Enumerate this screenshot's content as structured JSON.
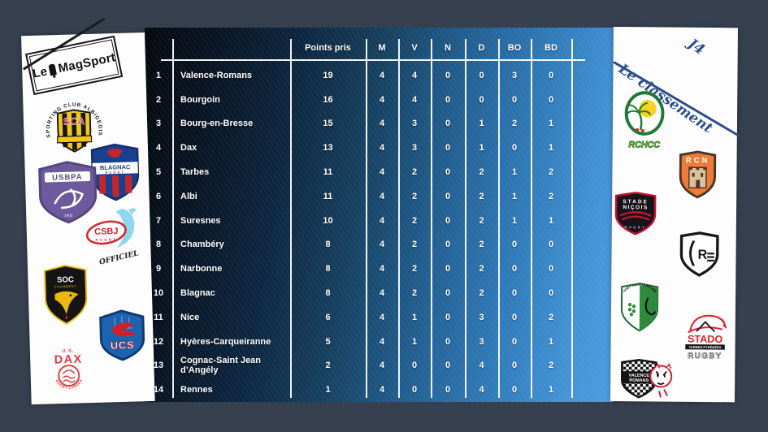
{
  "chart_data": {
    "type": "table",
    "journee": "J4",
    "title": "Le classement",
    "columns": [
      "Points pris",
      "M",
      "V",
      "N",
      "D",
      "BO",
      "BD"
    ],
    "rows": [
      {
        "rank": 1,
        "team": "Valence-Romans",
        "points_pris": 19,
        "m": 4,
        "v": 4,
        "n": 0,
        "d": 0,
        "bo": 3,
        "bd": 0
      },
      {
        "rank": 2,
        "team": "Bourgoin",
        "points_pris": 16,
        "m": 4,
        "v": 4,
        "n": 0,
        "d": 0,
        "bo": 0,
        "bd": 0
      },
      {
        "rank": 3,
        "team": "Bourg-en-Bresse",
        "points_pris": 15,
        "m": 4,
        "v": 3,
        "n": 0,
        "d": 1,
        "bo": 2,
        "bd": 1
      },
      {
        "rank": 4,
        "team": "Dax",
        "points_pris": 13,
        "m": 4,
        "v": 3,
        "n": 0,
        "d": 1,
        "bo": 0,
        "bd": 1
      },
      {
        "rank": 5,
        "team": "Tarbes",
        "points_pris": 11,
        "m": 4,
        "v": 2,
        "n": 0,
        "d": 2,
        "bo": 1,
        "bd": 2
      },
      {
        "rank": 6,
        "team": "Albi",
        "points_pris": 11,
        "m": 4,
        "v": 2,
        "n": 0,
        "d": 2,
        "bo": 1,
        "bd": 2
      },
      {
        "rank": 7,
        "team": "Suresnes",
        "points_pris": 10,
        "m": 4,
        "v": 2,
        "n": 0,
        "d": 2,
        "bo": 1,
        "bd": 1
      },
      {
        "rank": 8,
        "team": "Chambéry",
        "points_pris": 8,
        "m": 4,
        "v": 2,
        "n": 0,
        "d": 2,
        "bo": 0,
        "bd": 0
      },
      {
        "rank": 9,
        "team": "Narbonne",
        "points_pris": 8,
        "m": 4,
        "v": 2,
        "n": 0,
        "d": 2,
        "bo": 0,
        "bd": 0
      },
      {
        "rank": 10,
        "team": "Blagnac",
        "points_pris": 8,
        "m": 4,
        "v": 2,
        "n": 0,
        "d": 2,
        "bo": 0,
        "bd": 0
      },
      {
        "rank": 11,
        "team": "Nice",
        "points_pris": 6,
        "m": 4,
        "v": 1,
        "n": 0,
        "d": 3,
        "bo": 0,
        "bd": 2
      },
      {
        "rank": 12,
        "team": "Hyères-Carqueiranne",
        "points_pris": 5,
        "m": 4,
        "v": 1,
        "n": 0,
        "d": 3,
        "bo": 0,
        "bd": 1
      },
      {
        "rank": 13,
        "team": "Cognac-Saint Jean d’Angély",
        "points_pris": 2,
        "m": 4,
        "v": 0,
        "n": 0,
        "d": 4,
        "bo": 0,
        "bd": 2
      },
      {
        "rank": 14,
        "team": "Rennes",
        "points_pris": 1,
        "m": 4,
        "v": 0,
        "n": 0,
        "d": 4,
        "bo": 0,
        "bd": 1
      }
    ],
    "grid": "white lines on blue gradient",
    "accent_colors": {
      "background": "#36404f",
      "table_dark": "#081423",
      "table_light": "#4d9de0",
      "script_blue": "#2b4d8c"
    }
  },
  "left_panel": {
    "magsport": {
      "prefix": "Le",
      "suffix": "MagSport"
    },
    "sca": {
      "arc": "SPORTING CLUB ALBIGEOIS",
      "label": "SCA"
    },
    "blagnac": {
      "label": "BLAGNAC",
      "sub": "RUGBY"
    },
    "usbpa": {
      "label": "USBPA",
      "year": "1903"
    },
    "csbj": {
      "label": "CSBJ",
      "sub": "RUGBY",
      "note": "OFFICIEL"
    },
    "soc": {
      "label": "SOC",
      "sub": "CHAMBERY"
    },
    "ucs": {
      "label": "UCS"
    },
    "dax": {
      "top": "U.S.",
      "label": "DAX",
      "arc": "RUGBY LANDES"
    }
  },
  "right_panel": {
    "rchcc": {
      "label": "RCHCC"
    },
    "rcn": {
      "label": "RCN"
    },
    "nicois": {
      "line1": "STADE",
      "line2": "NIÇOIS",
      "sub": "RUGBY"
    },
    "rennes": {
      "label": "R"
    },
    "suresnes": {
      "arc": "RUGBY CLUB SURESNES"
    },
    "stado": {
      "label": "STADO",
      "sub": "TARBES-PYRÉNÉES",
      "bottom": "RUGBY"
    },
    "valence": {
      "line1": "VALENCE",
      "line2": "ROMANS"
    }
  }
}
